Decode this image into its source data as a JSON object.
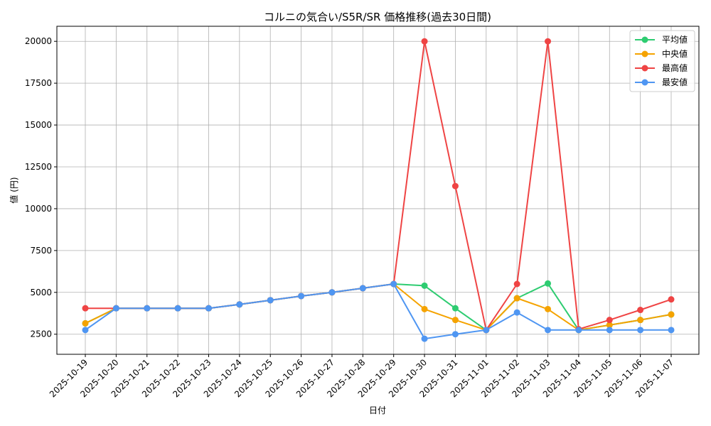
{
  "chart_data": {
    "type": "line",
    "title": "コルニの気合い/S5R/SR 価格推移(過去30日間)",
    "xlabel": "日付",
    "ylabel": "値 (円)",
    "categories": [
      "2025-10-19",
      "2025-10-20",
      "2025-10-21",
      "2025-10-22",
      "2025-10-23",
      "2025-10-24",
      "2025-10-25",
      "2025-10-26",
      "2025-10-27",
      "2025-10-28",
      "2025-10-29",
      "2025-10-30",
      "2025-10-31",
      "2025-11-01",
      "2025-11-02",
      "2025-11-03",
      "2025-11-04",
      "2025-11-05",
      "2025-11-06",
      "2025-11-07"
    ],
    "ylim": [
      1300,
      20900
    ],
    "yticks": [
      2500,
      5000,
      7500,
      10000,
      12500,
      15000,
      17500,
      20000
    ],
    "grid": true,
    "legend_position": "top-right",
    "series": [
      {
        "name": "平均値",
        "color": "#2ecc71",
        "values": [
          3150,
          4050,
          4050,
          4050,
          4050,
          4280,
          4530,
          4780,
          5000,
          5250,
          5500,
          5400,
          4050,
          2750,
          4650,
          5530,
          2750,
          3050,
          3350,
          3680
        ]
      },
      {
        "name": "中央値",
        "color": "#f5a300",
        "values": [
          3150,
          4050,
          4050,
          4050,
          4050,
          4280,
          4530,
          4780,
          5000,
          5250,
          5500,
          4000,
          3350,
          2750,
          4650,
          4000,
          2750,
          3050,
          3350,
          3680
        ]
      },
      {
        "name": "最高値",
        "color": "#ef4444",
        "values": [
          4050,
          4050,
          4050,
          4050,
          4050,
          4280,
          4530,
          4780,
          5000,
          5250,
          5500,
          20000,
          11350,
          2750,
          5500,
          20000,
          2800,
          3350,
          3950,
          4580
        ]
      },
      {
        "name": "最安値",
        "color": "#4f96f2",
        "values": [
          2750,
          4050,
          4050,
          4050,
          4050,
          4280,
          4530,
          4780,
          5000,
          5250,
          5500,
          2230,
          2500,
          2750,
          3800,
          2750,
          2750,
          2750,
          2750,
          2750
        ]
      }
    ]
  }
}
